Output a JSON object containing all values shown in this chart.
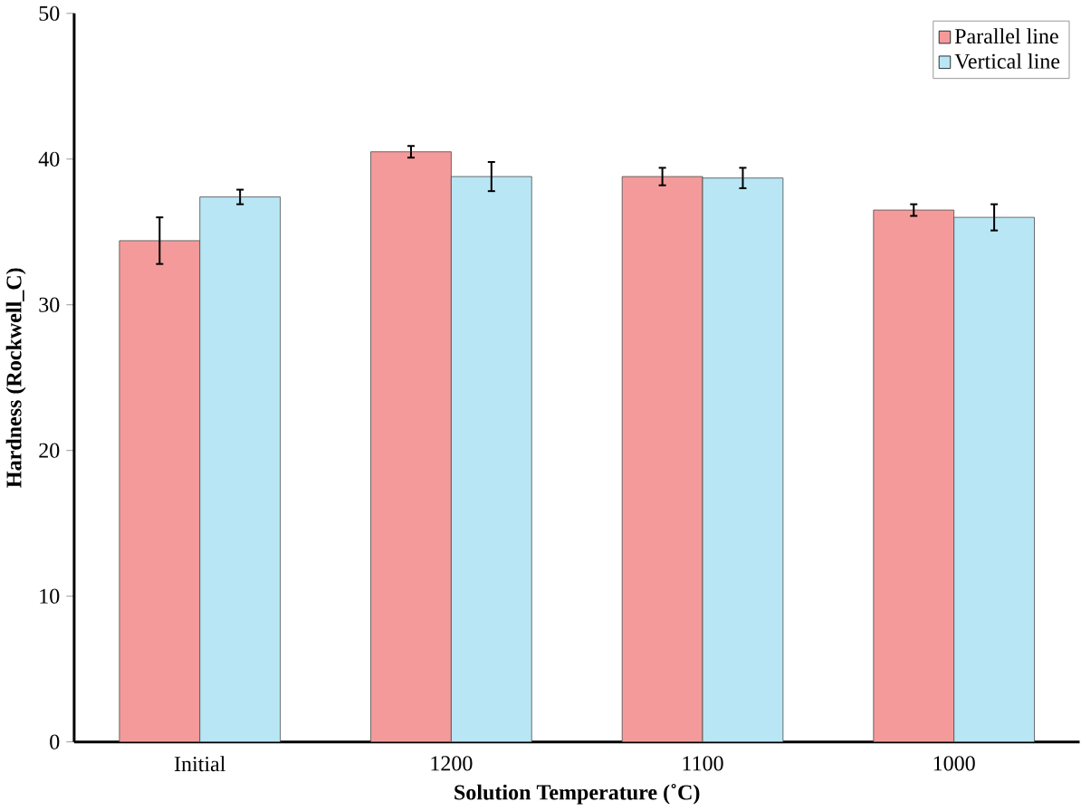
{
  "chart_data": {
    "type": "bar",
    "xlabel": "Solution Temperature (˚C)",
    "ylabel": "Hardness (Rockwell_C)",
    "categories": [
      "Initial",
      "1200",
      "1100",
      "1000"
    ],
    "series": [
      {
        "name": "Parallel line",
        "color": "#f59a9a",
        "values": [
          34.4,
          40.5,
          38.8,
          36.5
        ],
        "errors": [
          1.6,
          0.4,
          0.6,
          0.4
        ]
      },
      {
        "name": "Vertical line",
        "color": "#b8e6f5",
        "values": [
          37.4,
          38.8,
          38.7,
          36.0
        ],
        "errors": [
          0.5,
          1.0,
          0.7,
          0.9
        ]
      }
    ],
    "ylim": [
      0,
      50
    ],
    "yticks": [
      0,
      10,
      20,
      30,
      40,
      50
    ],
    "grid": false,
    "legend": "top right"
  }
}
